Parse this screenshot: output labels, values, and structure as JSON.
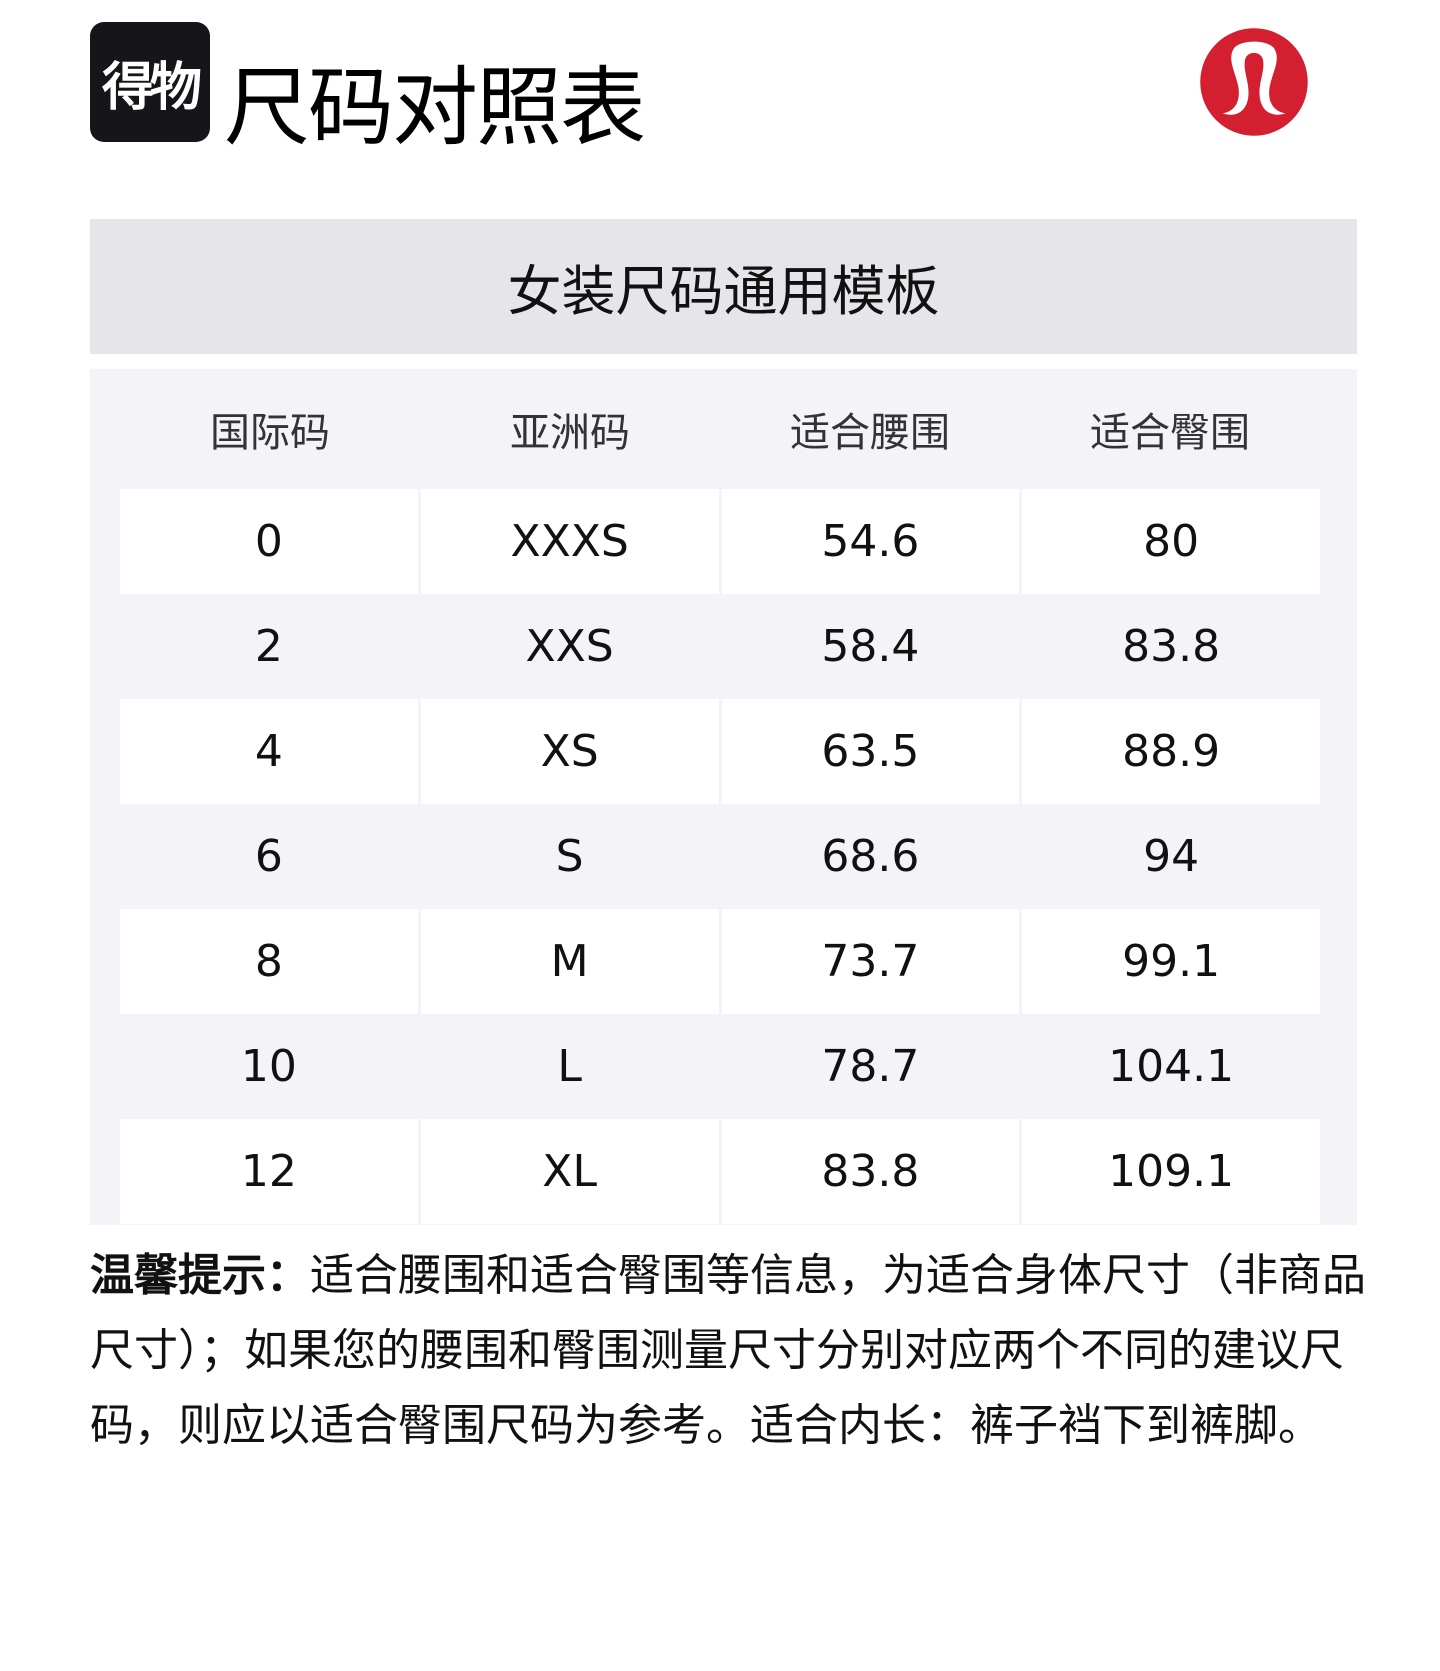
{
  "header": {
    "brand_badge": "得物",
    "title": "尺码对照表",
    "logo": "lululemon-logo",
    "logo_color": "#d31f2f"
  },
  "section": {
    "title": "女装尺码通用模板"
  },
  "table": {
    "columns": [
      "国际码",
      "亚洲码",
      "适合腰围",
      "适合臀围"
    ],
    "rows": [
      [
        "0",
        "XXXS",
        "54.6",
        "80"
      ],
      [
        "2",
        "XXS",
        "58.4",
        "83.8"
      ],
      [
        "4",
        "XS",
        "63.5",
        "88.9"
      ],
      [
        "6",
        "S",
        "68.6",
        "94"
      ],
      [
        "8",
        "M",
        "73.7",
        "99.1"
      ],
      [
        "10",
        "L",
        "78.7",
        "104.1"
      ],
      [
        "12",
        "XL",
        "83.8",
        "109.1"
      ]
    ]
  },
  "note": {
    "label": "温馨提示：",
    "text": "适合腰围和适合臀围等信息，为适合身体尺寸（非商品尺寸）；如果您的腰围和臀围测量尺寸分别对应两个不同的建议尺码，则应以适合臀围尺码为参考。适合内长：裤子裆下到裤脚。"
  }
}
